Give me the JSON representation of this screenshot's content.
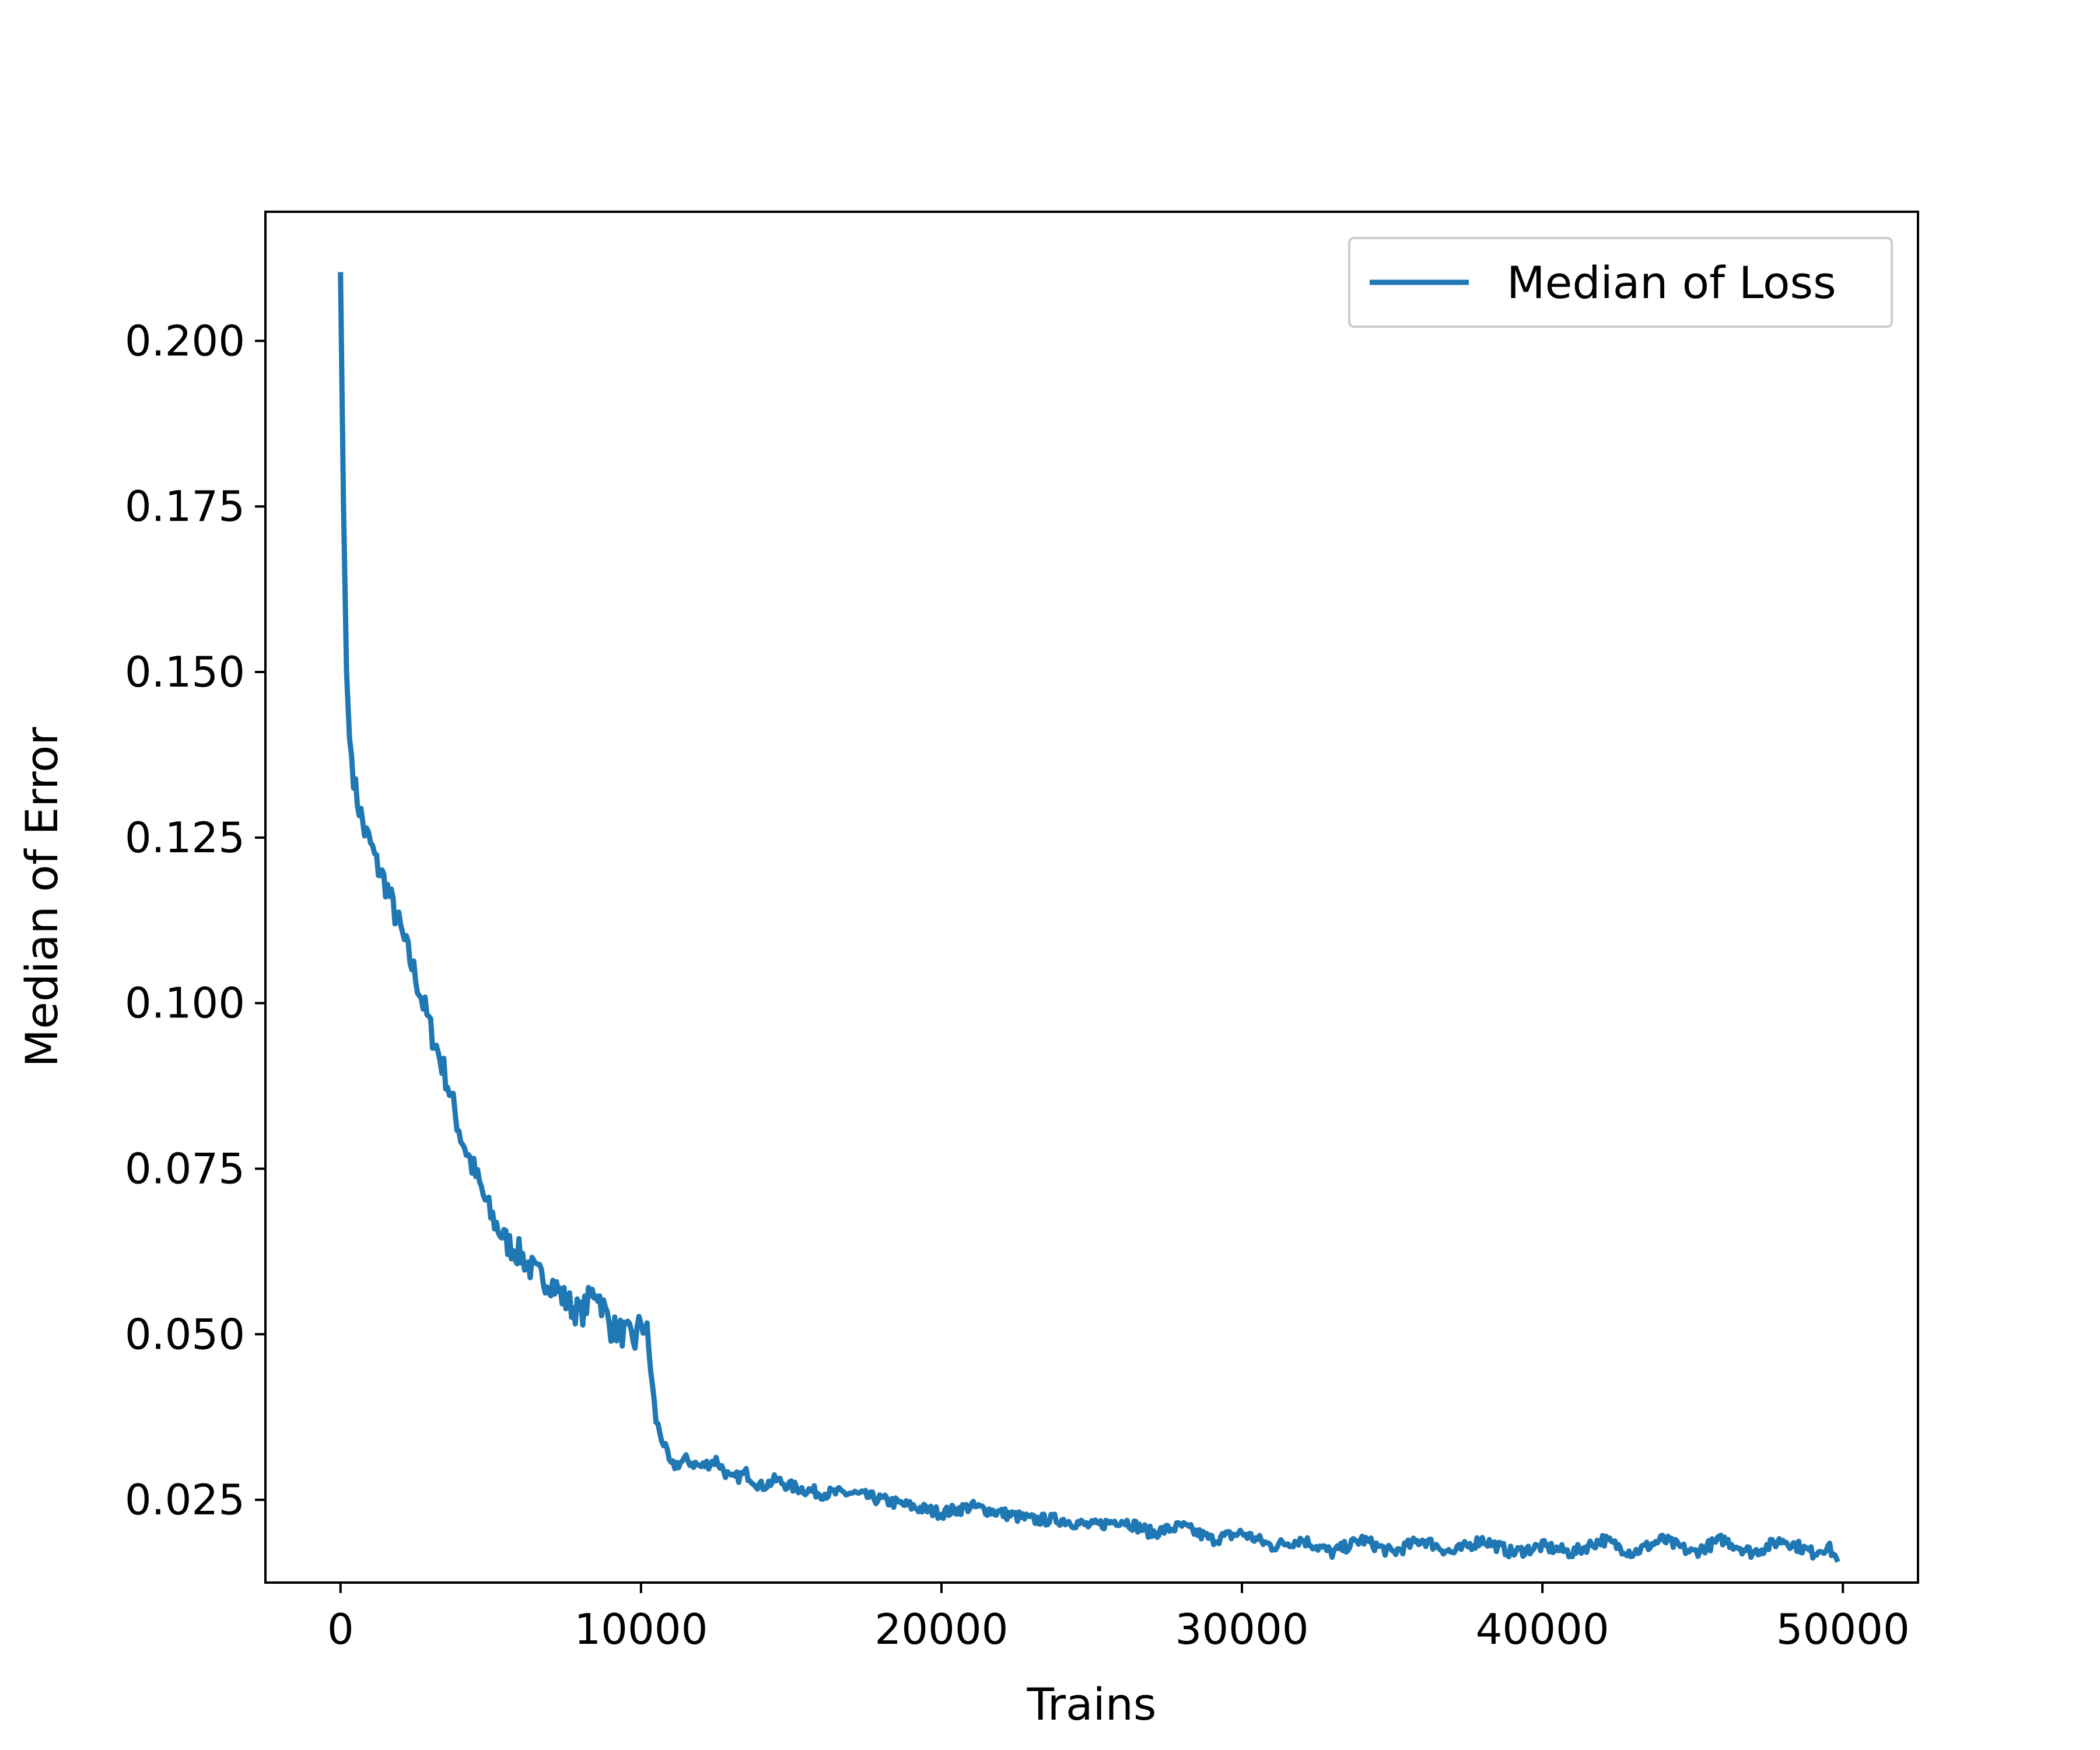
{
  "chart_data": {
    "type": "line",
    "title": "",
    "xlabel": "Trains",
    "ylabel": "Median of Error",
    "xlim": [
      -2500,
      52500
    ],
    "ylim": [
      0.0125,
      0.2195
    ],
    "xticks": [
      0,
      10000,
      20000,
      30000,
      40000,
      50000
    ],
    "yticks": [
      0.025,
      0.05,
      0.075,
      0.1,
      0.125,
      0.15,
      0.175,
      0.2
    ],
    "xtick_labels": [
      "0",
      "10000",
      "20000",
      "30000",
      "40000",
      "50000"
    ],
    "ytick_labels": [
      "0.025",
      "0.050",
      "0.075",
      "0.100",
      "0.125",
      "0.150",
      "0.175",
      "0.200"
    ],
    "grid": false,
    "legend": {
      "position": "top-right"
    },
    "series": [
      {
        "name": "Median of Loss",
        "color": "#1f77b4",
        "x": [
          0,
          100,
          200,
          300,
          500,
          800,
          1000,
          1200,
          1500,
          2000,
          2500,
          3000,
          3500,
          4000,
          4500,
          5000,
          5500,
          6000,
          6500,
          7000,
          7500,
          8000,
          8500,
          9000,
          9500,
          9800,
          10000,
          10200,
          10500,
          11000,
          11500,
          12000,
          12500,
          13000,
          13500,
          14000,
          14500,
          15000,
          16000,
          17000,
          18000,
          19000,
          20000,
          21000,
          22000,
          23000,
          24000,
          25000,
          26000,
          27000,
          28000,
          29000,
          30000,
          31000,
          32000,
          33000,
          34000,
          35000,
          36000,
          37000,
          38000,
          39000,
          40000,
          41000,
          42000,
          43000,
          44000,
          45000,
          46000,
          47000,
          48000,
          49000,
          49500,
          49800
        ],
        "y": [
          0.21,
          0.175,
          0.15,
          0.14,
          0.132,
          0.126,
          0.124,
          0.121,
          0.118,
          0.111,
          0.104,
          0.096,
          0.089,
          0.08,
          0.074,
          0.068,
          0.064,
          0.062,
          0.059,
          0.058,
          0.055,
          0.053,
          0.057,
          0.051,
          0.05,
          0.049,
          0.052,
          0.05,
          0.037,
          0.03,
          0.031,
          0.03,
          0.031,
          0.028,
          0.029,
          0.027,
          0.028,
          0.027,
          0.026,
          0.026,
          0.025,
          0.024,
          0.023,
          0.024,
          0.023,
          0.022,
          0.022,
          0.021,
          0.022,
          0.02,
          0.021,
          0.019,
          0.02,
          0.018,
          0.019,
          0.017,
          0.019,
          0.017,
          0.019,
          0.017,
          0.019,
          0.017,
          0.018,
          0.017,
          0.019,
          0.017,
          0.019,
          0.017,
          0.019,
          0.017,
          0.019,
          0.017,
          0.018,
          0.016
        ]
      }
    ]
  }
}
